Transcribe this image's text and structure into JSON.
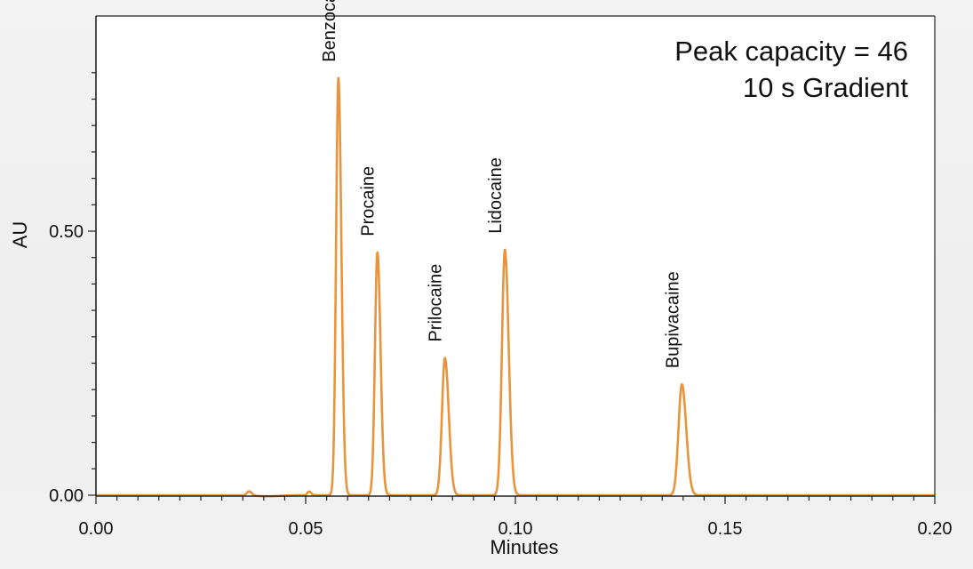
{
  "chart_data": {
    "type": "line",
    "xlabel": "Minutes",
    "ylabel": "AU",
    "xlim": [
      0.0,
      0.2
    ],
    "ylim": [
      -0.003,
      0.82
    ],
    "x_ticks": [
      0.0,
      0.05,
      0.1,
      0.15,
      0.2
    ],
    "x_tick_labels": [
      "0.00",
      "0.05",
      "0.10",
      "0.15",
      "0.20"
    ],
    "y_ticks": [
      0.0,
      0.5
    ],
    "y_tick_labels": [
      "0.00",
      "0.50"
    ],
    "grid": false,
    "legend": "none",
    "line_color": "#e9943a",
    "annotations": [
      "Peak capacity = 46",
      "10 s Gradient"
    ],
    "peaks": [
      {
        "name": "Benzocaine",
        "x": 0.0578,
        "y": 0.79,
        "width": 0.00055
      },
      {
        "name": "Procaine",
        "x": 0.0671,
        "y": 0.46,
        "width": 0.00058
      },
      {
        "name": "Prilocaine",
        "x": 0.0832,
        "y": 0.26,
        "width": 0.0007
      },
      {
        "name": "Lidocaine",
        "x": 0.0975,
        "y": 0.465,
        "width": 0.0007
      },
      {
        "name": "Bupivacaine",
        "x": 0.1397,
        "y": 0.21,
        "width": 0.0008
      }
    ],
    "minor_peaks": [
      {
        "x": 0.0365,
        "y": 0.008,
        "width": 0.0005
      },
      {
        "x": 0.0508,
        "y": 0.007,
        "width": 0.0004
      }
    ]
  }
}
